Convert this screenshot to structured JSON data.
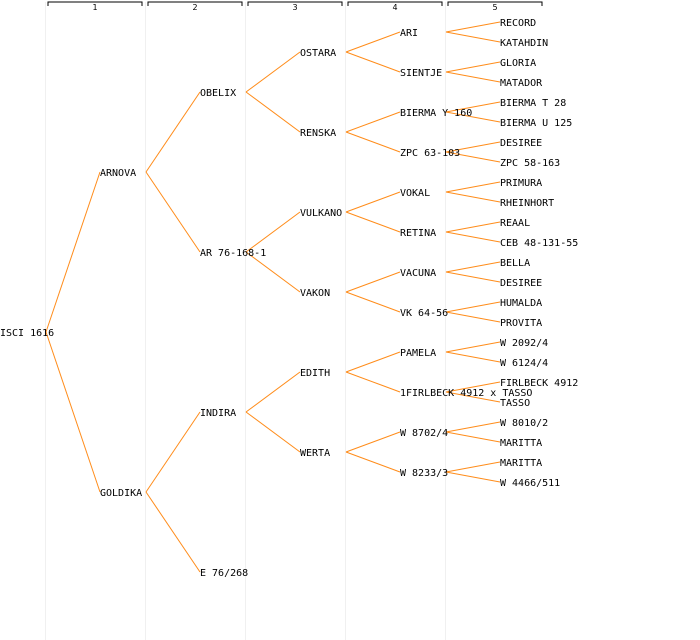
{
  "colors": {
    "background": "#ffffff",
    "link": "#ff8c1a",
    "column_band": "#f0f0f0",
    "text": "#000000"
  },
  "columns": [
    "1",
    "2",
    "3",
    "4",
    "5"
  ],
  "tree": {
    "name": "ISCI 1616",
    "children": [
      {
        "name": "ARNOVA",
        "children": [
          {
            "name": "OBELIX",
            "children": [
              {
                "name": "OSTARA",
                "children": [
                  {
                    "name": "ARI",
                    "children": [
                      {
                        "name": "RECORD"
                      },
                      {
                        "name": "KATAHDIN"
                      }
                    ]
                  },
                  {
                    "name": "SIENTJE",
                    "children": [
                      {
                        "name": "GLORIA"
                      },
                      {
                        "name": "MATADOR"
                      }
                    ]
                  }
                ]
              },
              {
                "name": "RENSKA",
                "children": [
                  {
                    "name": "BIERMA Y 160",
                    "children": [
                      {
                        "name": "BIERMA T 28"
                      },
                      {
                        "name": "BIERMA U 125"
                      }
                    ]
                  },
                  {
                    "name": "ZPC 63-103",
                    "children": [
                      {
                        "name": "DESIREE"
                      },
                      {
                        "name": "ZPC 58-163"
                      }
                    ]
                  }
                ]
              }
            ]
          },
          {
            "name": "AR 76-168-1",
            "children": [
              {
                "name": "VULKANO",
                "children": [
                  {
                    "name": "VOKAL",
                    "children": [
                      {
                        "name": "PRIMURA"
                      },
                      {
                        "name": "RHEINHORT"
                      }
                    ]
                  },
                  {
                    "name": "RETINA",
                    "children": [
                      {
                        "name": "REAAL"
                      },
                      {
                        "name": "CEB 48-131-55"
                      }
                    ]
                  }
                ]
              },
              {
                "name": "VAKON",
                "children": [
                  {
                    "name": "VACUNA",
                    "children": [
                      {
                        "name": "BELLA"
                      },
                      {
                        "name": "DESIREE"
                      }
                    ]
                  },
                  {
                    "name": "VK 64-56",
                    "children": [
                      {
                        "name": "HUMALDA"
                      },
                      {
                        "name": "PROVITA"
                      }
                    ]
                  }
                ]
              }
            ]
          }
        ]
      },
      {
        "name": "GOLDIKA",
        "children": [
          {
            "name": "INDIRA",
            "children": [
              {
                "name": "EDITH",
                "children": [
                  {
                    "name": "PAMELA",
                    "children": [
                      {
                        "name": "W 2092/4"
                      },
                      {
                        "name": "W 6124/4"
                      }
                    ]
                  },
                  {
                    "name": "1FIRLBECK 4912 x TASSO",
                    "children": [
                      {
                        "name": "FIRLBECK 4912"
                      },
                      {
                        "name": "TASSO"
                      }
                    ]
                  }
                ]
              },
              {
                "name": "WERTA",
                "children": [
                  {
                    "name": "W 8702/4",
                    "children": [
                      {
                        "name": "W 8010/2"
                      },
                      {
                        "name": "MARITTA"
                      }
                    ]
                  },
                  {
                    "name": "W 8233/3",
                    "children": [
                      {
                        "name": "MARITTA"
                      },
                      {
                        "name": "W 4466/511"
                      }
                    ]
                  }
                ]
              }
            ]
          },
          {
            "name": "E 76/268"
          }
        ]
      }
    ]
  }
}
